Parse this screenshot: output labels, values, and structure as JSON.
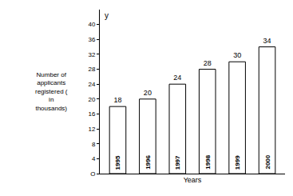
{
  "chart_data": {
    "type": "bar",
    "x_label": "Years",
    "y_label": "Number of applicants registered ( in thousands)",
    "annotations": [
      "y"
    ],
    "categories": [
      "1995",
      "1996",
      "1997",
      "1998",
      "1999",
      "2000"
    ],
    "values": [
      18,
      20,
      24,
      28,
      30,
      34
    ],
    "color": "#ffffff",
    "ylim": [
      0,
      44
    ],
    "yticks": [
      {
        "value": 0,
        "label": "O"
      },
      4,
      8,
      12,
      16,
      20,
      24,
      28,
      32,
      36,
      40
    ],
    "grid": false,
    "data_labels": true
  }
}
